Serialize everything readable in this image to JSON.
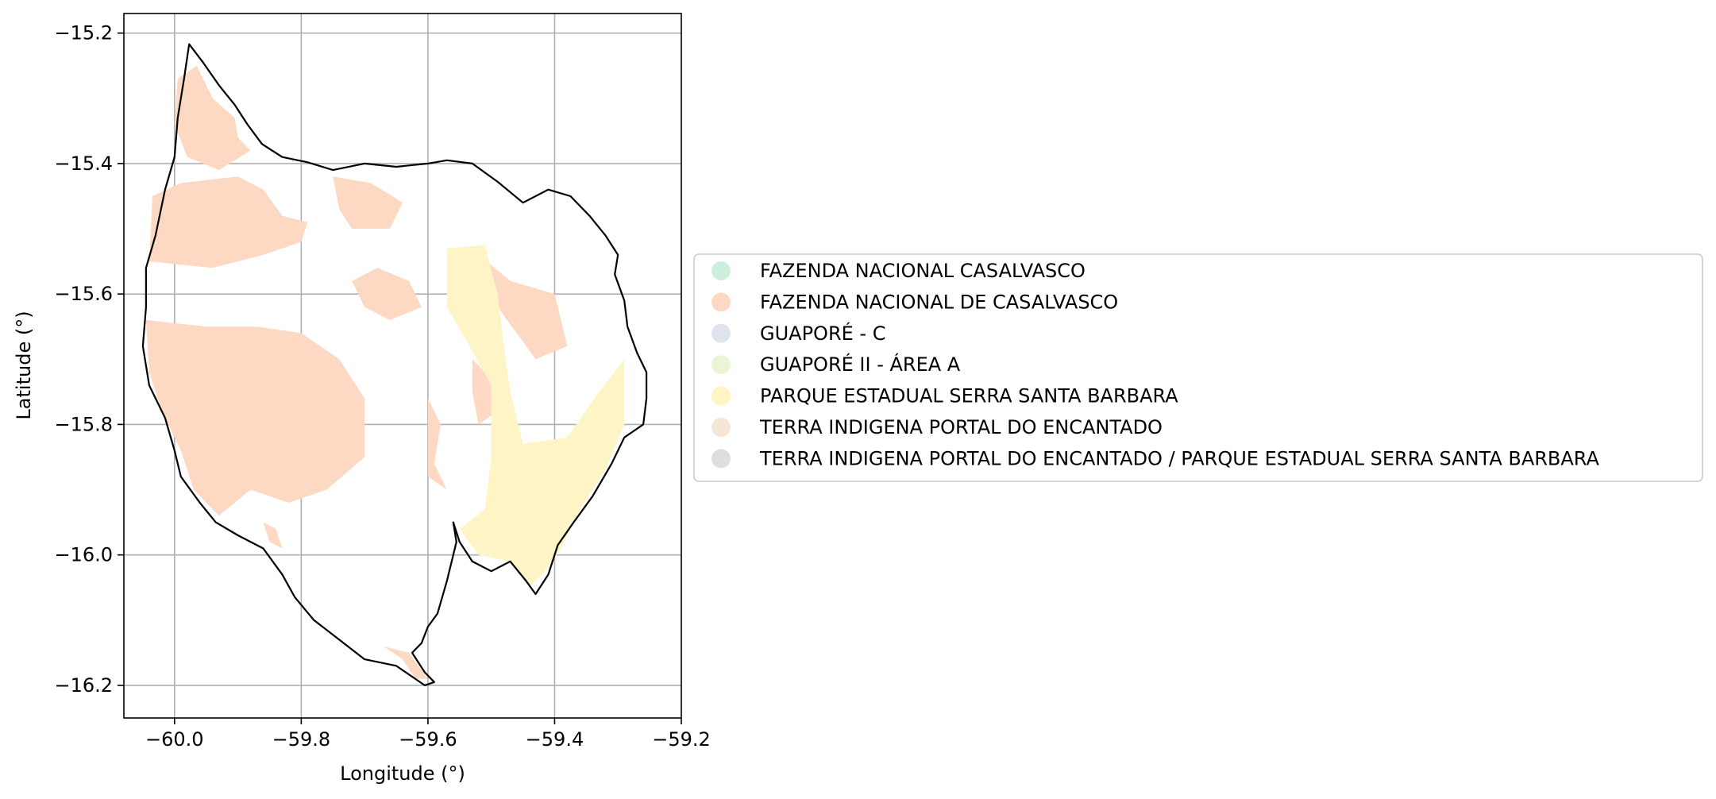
{
  "chart_data": {
    "type": "map",
    "title": "",
    "xlabel": "Longitude (°)",
    "ylabel": "Latitude (°)",
    "xlim": [
      -60.08,
      -59.2
    ],
    "ylim": [
      -16.25,
      -15.17
    ],
    "grid": true,
    "x_ticks": [
      -60.0,
      -59.8,
      -59.6,
      -59.4,
      -59.2
    ],
    "y_ticks": [
      -15.2,
      -15.4,
      -15.6,
      -15.8,
      -16.0,
      -16.2
    ],
    "x_tick_labels": [
      "−60.0",
      "−59.8",
      "−59.6",
      "−59.4",
      "−59.2"
    ],
    "y_tick_labels": [
      "−15.2",
      "−15.4",
      "−15.6",
      "−15.8",
      "−16.0",
      "−16.2"
    ],
    "legend_position": "center-left outside plot",
    "legend": [
      {
        "label": "FAZENDA NACIONAL CASALVASCO",
        "color": "#cdeedd"
      },
      {
        "label": "FAZENDA NACIONAL DE CASALVASCO",
        "color": "#fdd9c4"
      },
      {
        "label": "GUAPORÉ - C",
        "color": "#dfe3ef"
      },
      {
        "label": "GUAPORÉ II - ÁREA A",
        "color": "#e9f5d6"
      },
      {
        "label": "PARQUE ESTADUAL SERRA SANTA BARBARA",
        "color": "#fff4c6"
      },
      {
        "label": "TERRA INDIGENA PORTAL DO ENCANTADO",
        "color": "#f6e6d6"
      },
      {
        "label": "TERRA INDIGENA PORTAL DO ENCANTADO / PARQUE ESTADUAL SERRA SANTA BARBARA",
        "color": "#dedede"
      }
    ],
    "boundary": [
      [
        -59.977,
        -15.217
      ],
      [
        -59.955,
        -15.245
      ],
      [
        -59.93,
        -15.28
      ],
      [
        -59.905,
        -15.31
      ],
      [
        -59.885,
        -15.34
      ],
      [
        -59.862,
        -15.37
      ],
      [
        -59.83,
        -15.39
      ],
      [
        -59.79,
        -15.398
      ],
      [
        -59.75,
        -15.41
      ],
      [
        -59.7,
        -15.4
      ],
      [
        -59.65,
        -15.405
      ],
      [
        -59.6,
        -15.4
      ],
      [
        -59.57,
        -15.395
      ],
      [
        -59.53,
        -15.4
      ],
      [
        -59.49,
        -15.428
      ],
      [
        -59.45,
        -15.46
      ],
      [
        -59.41,
        -15.44
      ],
      [
        -59.375,
        -15.45
      ],
      [
        -59.345,
        -15.48
      ],
      [
        -59.32,
        -15.51
      ],
      [
        -59.3,
        -15.54
      ],
      [
        -59.305,
        -15.57
      ],
      [
        -59.29,
        -15.61
      ],
      [
        -59.285,
        -15.65
      ],
      [
        -59.27,
        -15.69
      ],
      [
        -59.255,
        -15.72
      ],
      [
        -59.255,
        -15.76
      ],
      [
        -59.26,
        -15.8
      ],
      [
        -59.29,
        -15.82
      ],
      [
        -59.31,
        -15.86
      ],
      [
        -59.34,
        -15.91
      ],
      [
        -59.37,
        -15.95
      ],
      [
        -59.395,
        -15.985
      ],
      [
        -59.41,
        -16.03
      ],
      [
        -59.43,
        -16.06
      ],
      [
        -59.445,
        -16.04
      ],
      [
        -59.47,
        -16.01
      ],
      [
        -59.5,
        -16.025
      ],
      [
        -59.53,
        -16.01
      ],
      [
        -59.55,
        -15.98
      ],
      [
        -59.56,
        -15.95
      ],
      [
        -59.555,
        -15.98
      ],
      [
        -59.57,
        -16.04
      ],
      [
        -59.585,
        -16.09
      ],
      [
        -59.6,
        -16.11
      ],
      [
        -59.61,
        -16.135
      ],
      [
        -59.625,
        -16.15
      ],
      [
        -59.605,
        -16.18
      ],
      [
        -59.59,
        -16.195
      ],
      [
        -59.605,
        -16.2
      ],
      [
        -59.65,
        -16.17
      ],
      [
        -59.7,
        -16.16
      ],
      [
        -59.74,
        -16.13
      ],
      [
        -59.78,
        -16.1
      ],
      [
        -59.81,
        -16.065
      ],
      [
        -59.83,
        -16.03
      ],
      [
        -59.86,
        -15.99
      ],
      [
        -59.9,
        -15.97
      ],
      [
        -59.935,
        -15.95
      ],
      [
        -59.96,
        -15.92
      ],
      [
        -59.99,
        -15.88
      ],
      [
        -60.0,
        -15.84
      ],
      [
        -60.015,
        -15.79
      ],
      [
        -60.04,
        -15.74
      ],
      [
        -60.05,
        -15.68
      ],
      [
        -60.045,
        -15.62
      ],
      [
        -60.045,
        -15.56
      ],
      [
        -60.03,
        -15.51
      ],
      [
        -60.015,
        -15.44
      ],
      [
        -60.0,
        -15.39
      ],
      [
        -59.995,
        -15.33
      ],
      [
        -59.985,
        -15.27
      ]
    ],
    "regions": [
      {
        "class": 1,
        "coords": [
          [
            -59.995,
            -15.27
          ],
          [
            -59.965,
            -15.25
          ],
          [
            -59.94,
            -15.3
          ],
          [
            -59.905,
            -15.33
          ],
          [
            -59.9,
            -15.36
          ],
          [
            -59.88,
            -15.38
          ],
          [
            -59.93,
            -15.41
          ],
          [
            -59.98,
            -15.39
          ],
          [
            -60.0,
            -15.34
          ]
        ]
      },
      {
        "class": 1,
        "coords": [
          [
            -60.035,
            -15.45
          ],
          [
            -59.99,
            -15.43
          ],
          [
            -59.9,
            -15.42
          ],
          [
            -59.86,
            -15.44
          ],
          [
            -59.83,
            -15.48
          ],
          [
            -59.79,
            -15.49
          ],
          [
            -59.8,
            -15.52
          ],
          [
            -59.86,
            -15.54
          ],
          [
            -59.94,
            -15.56
          ],
          [
            -60.04,
            -15.55
          ]
        ]
      },
      {
        "class": 1,
        "coords": [
          [
            -60.045,
            -15.64
          ],
          [
            -59.95,
            -15.65
          ],
          [
            -59.87,
            -15.65
          ],
          [
            -59.8,
            -15.66
          ],
          [
            -59.74,
            -15.7
          ],
          [
            -59.7,
            -15.76
          ],
          [
            -59.7,
            -15.85
          ],
          [
            -59.76,
            -15.9
          ],
          [
            -59.82,
            -15.92
          ],
          [
            -59.88,
            -15.9
          ],
          [
            -59.93,
            -15.94
          ],
          [
            -59.97,
            -15.9
          ],
          [
            -59.99,
            -15.84
          ],
          [
            -60.02,
            -15.78
          ],
          [
            -60.04,
            -15.72
          ]
        ]
      },
      {
        "class": 1,
        "coords": [
          [
            -59.75,
            -15.42
          ],
          [
            -59.69,
            -15.43
          ],
          [
            -59.64,
            -15.46
          ],
          [
            -59.66,
            -15.5
          ],
          [
            -59.72,
            -15.5
          ],
          [
            -59.74,
            -15.47
          ]
        ]
      },
      {
        "class": 1,
        "coords": [
          [
            -59.72,
            -15.58
          ],
          [
            -59.68,
            -15.56
          ],
          [
            -59.63,
            -15.58
          ],
          [
            -59.61,
            -15.62
          ],
          [
            -59.66,
            -15.64
          ],
          [
            -59.7,
            -15.62
          ]
        ]
      },
      {
        "class": 1,
        "coords": [
          [
            -59.6,
            -15.76
          ],
          [
            -59.58,
            -15.8
          ],
          [
            -59.59,
            -15.86
          ],
          [
            -59.57,
            -15.9
          ],
          [
            -59.6,
            -15.88
          ]
        ]
      },
      {
        "class": 1,
        "coords": [
          [
            -59.52,
            -15.54
          ],
          [
            -59.47,
            -15.58
          ],
          [
            -59.4,
            -15.6
          ],
          [
            -59.38,
            -15.68
          ],
          [
            -59.43,
            -15.7
          ],
          [
            -59.46,
            -15.66
          ],
          [
            -59.49,
            -15.62
          ]
        ]
      },
      {
        "class": 1,
        "coords": [
          [
            -59.53,
            -15.7
          ],
          [
            -59.5,
            -15.73
          ],
          [
            -59.49,
            -15.78
          ],
          [
            -59.52,
            -15.8
          ],
          [
            -59.53,
            -15.75
          ]
        ]
      },
      {
        "class": 1,
        "coords": [
          [
            -59.67,
            -16.14
          ],
          [
            -59.64,
            -16.16
          ],
          [
            -59.62,
            -16.19
          ],
          [
            -59.6,
            -16.19
          ],
          [
            -59.63,
            -16.15
          ]
        ]
      },
      {
        "class": 1,
        "coords": [
          [
            -59.86,
            -15.95
          ],
          [
            -59.85,
            -15.98
          ],
          [
            -59.83,
            -15.99
          ],
          [
            -59.84,
            -15.96
          ]
        ]
      },
      {
        "class": 4,
        "coords": [
          [
            -59.57,
            -15.53
          ],
          [
            -59.51,
            -15.525
          ],
          [
            -59.49,
            -15.6
          ],
          [
            -59.48,
            -15.68
          ],
          [
            -59.47,
            -15.75
          ],
          [
            -59.45,
            -15.83
          ],
          [
            -59.38,
            -15.82
          ],
          [
            -59.33,
            -15.75
          ],
          [
            -59.29,
            -15.7
          ],
          [
            -59.29,
            -15.8
          ],
          [
            -59.32,
            -15.87
          ],
          [
            -59.36,
            -15.93
          ],
          [
            -59.39,
            -15.99
          ],
          [
            -59.42,
            -16.03
          ],
          [
            -59.44,
            -16.05
          ],
          [
            -59.47,
            -16.01
          ],
          [
            -59.52,
            -16.0
          ],
          [
            -59.55,
            -15.96
          ],
          [
            -59.51,
            -15.93
          ],
          [
            -59.5,
            -15.85
          ],
          [
            -59.5,
            -15.74
          ],
          [
            -59.54,
            -15.67
          ],
          [
            -59.57,
            -15.62
          ]
        ]
      }
    ]
  }
}
